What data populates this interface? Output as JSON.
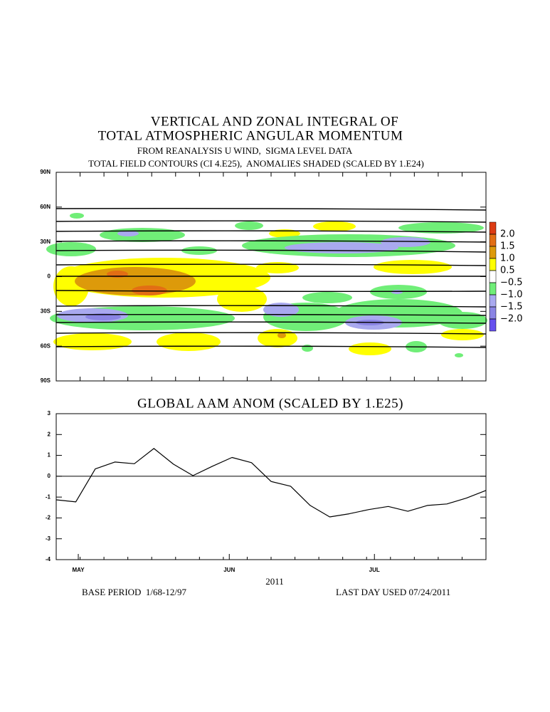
{
  "chart_data": [
    {
      "type": "contour",
      "title": [
        "VERTICAL AND ZONAL INTEGRAL OF",
        "TOTAL ATMOSPHERIC ANGULAR MOMENTUM"
      ],
      "subtitle": [
        "FROM REANALYSIS U WIND,  SIGMA LEVEL DATA",
        "TOTAL FIELD CONTOURS (CI 4.E25),  ANOMALIES SHADED (SCALED BY 1.E24)"
      ],
      "ylim": [
        90,
        -90
      ],
      "yticks": [
        {
          "value": 90,
          "label": "90N"
        },
        {
          "value": 60,
          "label": "60N"
        },
        {
          "value": 30,
          "label": "30N"
        },
        0,
        {
          "value": -30,
          "label": "30S"
        },
        {
          "value": -60,
          "label": "60S"
        },
        {
          "value": -90,
          "label": "90S"
        }
      ],
      "colorbar": {
        "levels": [
          {
            "value": 2,
            "label": "2.0"
          },
          {
            "value": 1.5,
            "label": "1.5"
          },
          {
            "value": 1,
            "label": "1.0"
          },
          {
            "value": 0.5,
            "label": "0.5"
          },
          {
            "value": -0.5,
            "label": "−0.5"
          },
          {
            "value": -1,
            "label": "−1.0"
          },
          {
            "value": -1.5,
            "label": "−1.5"
          },
          {
            "value": -2,
            "label": "−2.0"
          }
        ],
        "colors": [
          "#dc3c14",
          "#e26e14",
          "#dd9a0a",
          "#ffff00",
          "#ffffff",
          "#70ee78",
          "#a9a9ef",
          "#8a84e4",
          "#6650ee"
        ]
      }
    },
    {
      "type": "line",
      "title": "GLOBAL AAM ANOM (SCALED BY 1.E25)",
      "values": [
        -1.13,
        -1.23,
        0.35,
        0.68,
        0.6,
        1.33,
        0.58,
        0.03,
        0.48,
        0.9,
        0.65,
        -0.25,
        -0.48,
        -1.4,
        -1.95,
        -1.8,
        -1.6,
        -1.45,
        -1.68,
        -1.4,
        -1.33,
        -1.05,
        -0.68
      ],
      "color": "#000000",
      "xlim": [
        0,
        22
      ],
      "xticks": [
        {
          "value": 1.13,
          "label": "MAY"
        },
        {
          "value": 8.86,
          "label": "JUN"
        },
        {
          "value": 16.29,
          "label": "JUL"
        }
      ],
      "ylim": [
        -4,
        3
      ],
      "yticks": [
        -4,
        -3,
        -2,
        -1,
        0,
        1,
        2,
        3
      ],
      "xlabel": "2011",
      "annotations": [
        "BASE PERIOD  1/68-12/97",
        "LAST DAY USED 07/24/2011"
      ]
    }
  ]
}
